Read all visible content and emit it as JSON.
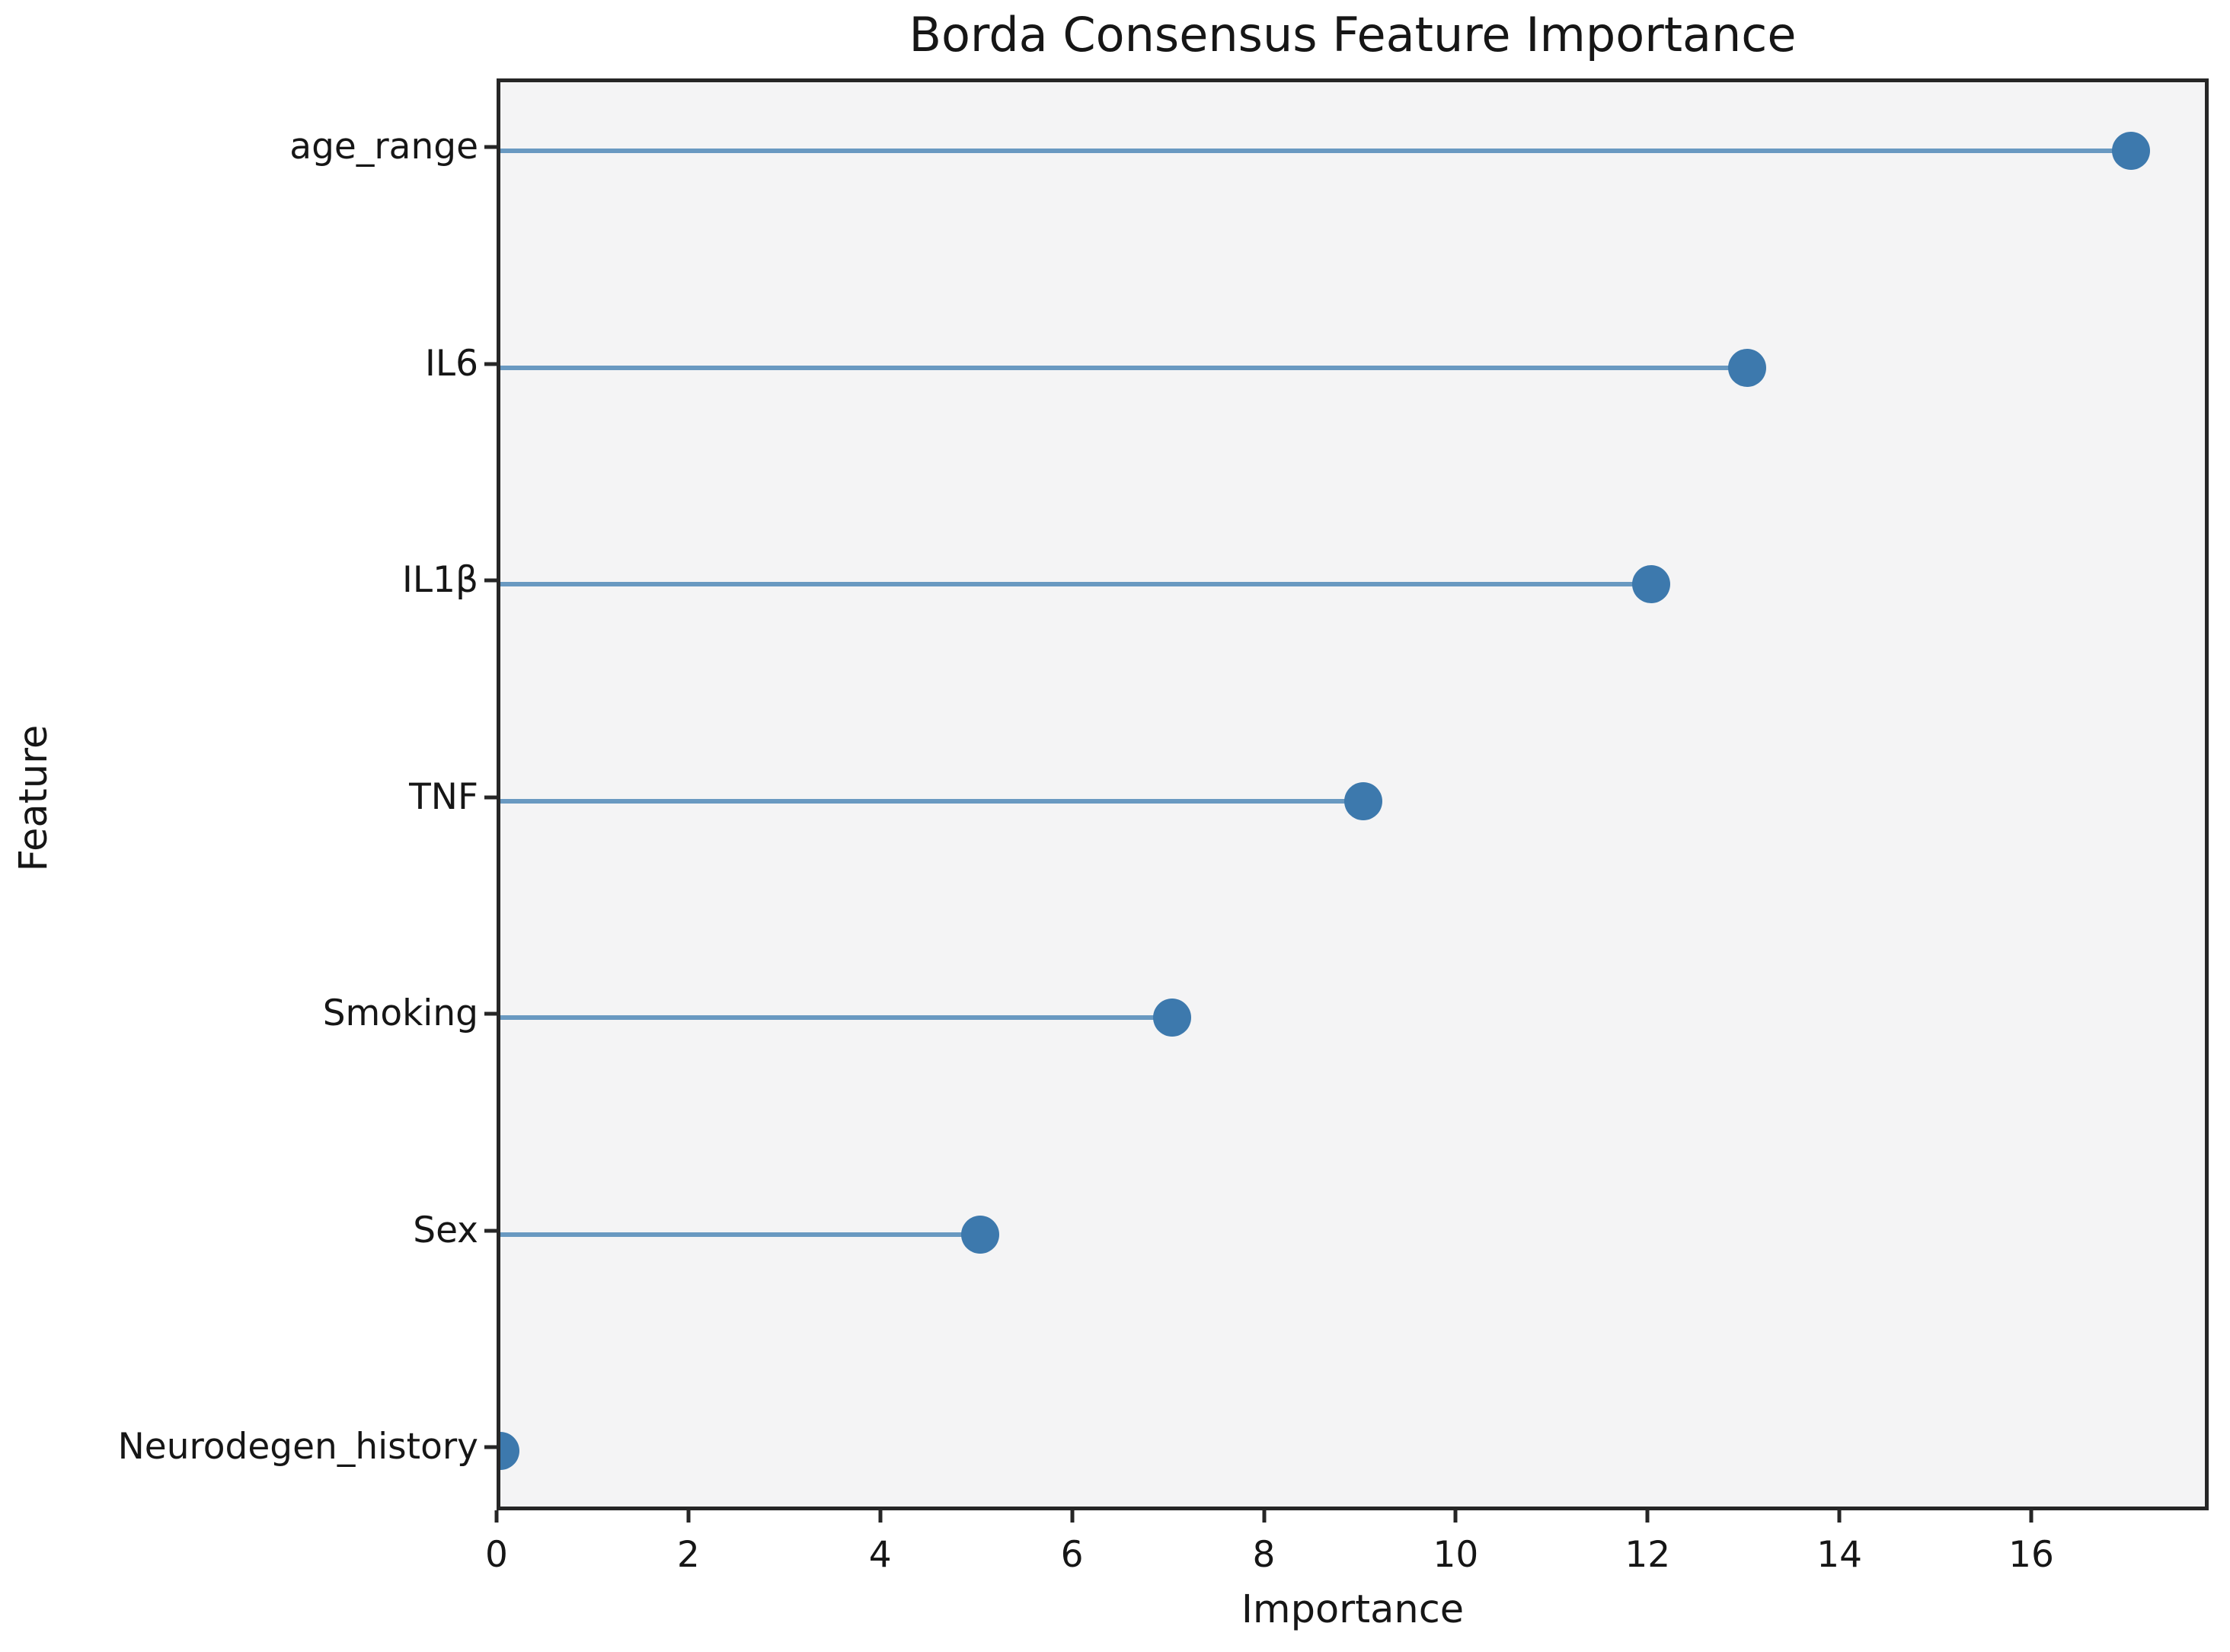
{
  "chart_data": {
    "type": "scatter",
    "variant": "horizontal-lollipop",
    "title": "Borda Consensus Feature Importance",
    "xlabel": "Importance",
    "ylabel": "Feature",
    "categories": [
      "age_range",
      "IL6",
      "IL1β",
      "TNF",
      "Smoking",
      "Sex",
      "Neurodegen_history"
    ],
    "values": [
      17,
      13,
      12,
      9,
      7,
      5,
      0
    ],
    "xlim": [
      0,
      17.85
    ],
    "xticks": [
      0,
      2,
      4,
      6,
      8,
      10,
      12,
      14,
      16
    ],
    "grid": false,
    "legend": false,
    "layout": {
      "category_order": "top-to-bottom",
      "marker_clipped_at_axis": "Neurodegen_history"
    },
    "colors": {
      "dot": "#3d79ad",
      "stem": "rgba(70,130,180,0.8)",
      "plot_background": "#f4f4f5",
      "spine": "#262626",
      "text": "#161616",
      "page_background": "#ffffff"
    }
  }
}
